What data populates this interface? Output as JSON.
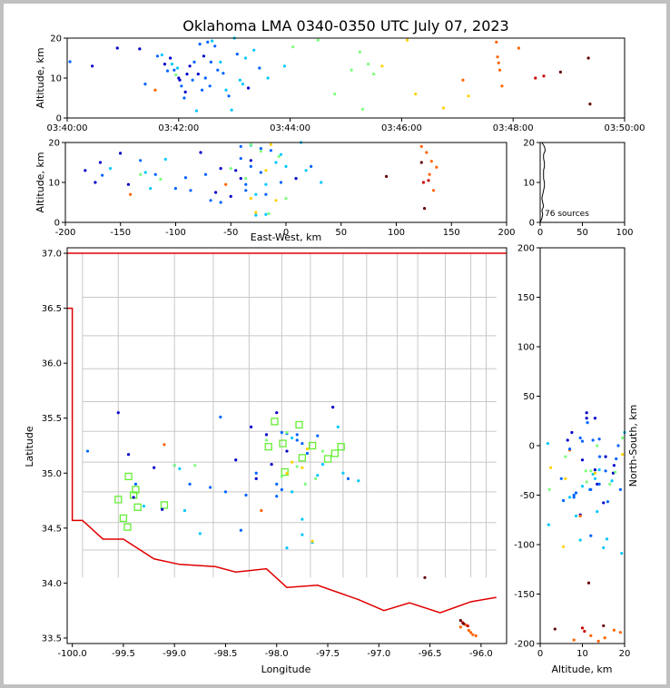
{
  "chart_data": {
    "type": "scatter",
    "title": "Oklahoma LMA 0340-0350 UTC July 07, 2023",
    "source_count_label": "76 sources",
    "colormap": [
      "#0000c8",
      "#0064ff",
      "#00c8ff",
      "#7cff7c",
      "#ffd200",
      "#ff6400",
      "#c80000",
      "#640000"
    ],
    "panels": {
      "time_alt": {
        "ylabel": "Altitude, km",
        "ylim": [
          0,
          20
        ],
        "yticks": [
          "0",
          "10",
          "20"
        ],
        "xticks": [
          "03:40:00",
          "03:42:00",
          "03:44:00",
          "03:46:00",
          "03:48:00",
          "03:50:00"
        ],
        "xlim_minutes": [
          0,
          10
        ]
      },
      "ew_alt": {
        "xlabel": "East-West, km",
        "ylabel": "Altitude, km",
        "xlim": [
          -200,
          200
        ],
        "ylim": [
          0,
          20
        ],
        "xticks": [
          "-200",
          "-150",
          "-100",
          "-50",
          "0",
          "50",
          "100",
          "150",
          "200"
        ],
        "yticks": [
          "0",
          "10",
          "20"
        ]
      },
      "histogram": {
        "xlim": [
          0,
          100
        ],
        "ylim": [
          0,
          20
        ],
        "xticks": [
          "0",
          "50",
          "100"
        ],
        "yticks": [
          "0",
          "10",
          "20"
        ]
      },
      "plan": {
        "xlabel": "Longitude",
        "ylabel": "Latitude",
        "xlim": [
          -100.05,
          -95.75
        ],
        "ylim": [
          33.45,
          37.05
        ],
        "xticks": [
          "-100.0",
          "-99.5",
          "-99.0",
          "-98.5",
          "-98.0",
          "-97.5",
          "-97.0",
          "-96.5",
          "-96.0"
        ],
        "yticks": [
          "33.5",
          "34.0",
          "34.5",
          "35.0",
          "35.5",
          "36.0",
          "36.5",
          "37.0"
        ]
      },
      "ns_alt": {
        "xlabel": "Altitude, km",
        "ylabel": "North-South, km",
        "xlim": [
          0,
          20
        ],
        "ylim": [
          -200,
          200
        ],
        "xticks": [
          "0",
          "10",
          "20"
        ],
        "yticks": [
          "-200",
          "-150",
          "-100",
          "-50",
          "0",
          "50",
          "100",
          "150",
          "200"
        ]
      }
    },
    "stations": [
      {
        "lon": -99.45,
        "lat": 34.97
      },
      {
        "lon": -99.38,
        "lat": 34.85
      },
      {
        "lon": -99.4,
        "lat": 34.8
      },
      {
        "lon": -99.55,
        "lat": 34.76
      },
      {
        "lon": -99.36,
        "lat": 34.69
      },
      {
        "lon": -99.5,
        "lat": 34.59
      },
      {
        "lon": -99.46,
        "lat": 34.51
      },
      {
        "lon": -99.1,
        "lat": 34.71
      },
      {
        "lon": -98.02,
        "lat": 35.47
      },
      {
        "lon": -97.78,
        "lat": 35.44
      },
      {
        "lon": -98.08,
        "lat": 35.24
      },
      {
        "lon": -97.94,
        "lat": 35.27
      },
      {
        "lon": -97.65,
        "lat": 35.25
      },
      {
        "lon": -97.75,
        "lat": 35.14
      },
      {
        "lon": -97.92,
        "lat": 35.01
      },
      {
        "lon": -97.43,
        "lat": 35.18
      },
      {
        "lon": -97.37,
        "lat": 35.24
      },
      {
        "lon": -97.5,
        "lat": 35.13
      }
    ],
    "sources": [
      {
        "t": 0.05,
        "lon": -99.85,
        "lat": 35.2,
        "alt": 14.1,
        "c": 1
      },
      {
        "t": 0.45,
        "lon": -99.55,
        "lat": 35.55,
        "alt": 13.0,
        "c": 0
      },
      {
        "t": 1.3,
        "lon": -99.2,
        "lat": 35.05,
        "alt": 17.3,
        "c": 0
      },
      {
        "t": 1.58,
        "lon": -99.1,
        "lat": 35.26,
        "alt": 7.0,
        "c": 5
      },
      {
        "t": 1.62,
        "lon": -99.0,
        "lat": 35.07,
        "alt": 15.5,
        "c": 1
      },
      {
        "t": 1.7,
        "lon": -98.75,
        "lat": 34.45,
        "alt": 15.8,
        "c": 2
      },
      {
        "t": 1.8,
        "lon": -99.38,
        "lat": 34.9,
        "alt": 11.8,
        "c": 1
      },
      {
        "t": 1.85,
        "lon": -99.4,
        "lat": 34.78,
        "alt": 15.0,
        "c": 0
      },
      {
        "t": 1.88,
        "lon": -99.3,
        "lat": 34.7,
        "alt": 13.5,
        "c": 2
      },
      {
        "t": 1.92,
        "lon": -98.85,
        "lat": 34.9,
        "alt": 12.0,
        "c": 1
      },
      {
        "t": 1.95,
        "lon": -98.8,
        "lat": 35.07,
        "alt": 10.8,
        "c": 3
      },
      {
        "t": 2.0,
        "lon": -99.45,
        "lat": 35.17,
        "alt": 10.0,
        "c": 0
      },
      {
        "t": 2.02,
        "lon": -99.12,
        "lat": 34.67,
        "alt": 9.5,
        "c": 0
      },
      {
        "t": 2.05,
        "lon": -98.5,
        "lat": 34.83,
        "alt": 8.0,
        "c": 1
      },
      {
        "t": 2.1,
        "lon": -98.2,
        "lat": 35.0,
        "alt": 5.0,
        "c": 1
      },
      {
        "t": 2.15,
        "lon": -98.0,
        "lat": 35.55,
        "alt": 11.0,
        "c": 0
      },
      {
        "t": 2.2,
        "lon": -98.05,
        "lat": 35.08,
        "alt": 13.0,
        "c": 0
      },
      {
        "t": 2.25,
        "lon": -97.95,
        "lat": 35.37,
        "alt": 9.5,
        "c": 1
      },
      {
        "t": 2.28,
        "lon": -97.9,
        "lat": 35.36,
        "alt": 14.0,
        "c": 1
      },
      {
        "t": 2.32,
        "lon": -97.85,
        "lat": 35.32,
        "alt": 1.8,
        "c": 2
      },
      {
        "t": 2.38,
        "lon": -97.8,
        "lat": 35.3,
        "alt": 18.5,
        "c": 1
      },
      {
        "t": 2.42,
        "lon": -97.75,
        "lat": 35.27,
        "alt": 7.0,
        "c": 1
      },
      {
        "t": 2.48,
        "lon": -97.6,
        "lat": 35.34,
        "alt": 10.0,
        "c": 1
      },
      {
        "t": 2.52,
        "lon": -98.0,
        "lat": 34.9,
        "alt": 19.0,
        "c": 1
      },
      {
        "t": 2.56,
        "lon": -97.95,
        "lat": 34.85,
        "alt": 8.0,
        "c": 1
      },
      {
        "t": 2.6,
        "lon": -97.9,
        "lat": 34.32,
        "alt": 19.3,
        "c": 2
      },
      {
        "t": 2.7,
        "lon": -98.35,
        "lat": 34.48,
        "alt": 12.0,
        "c": 1
      },
      {
        "t": 2.8,
        "lon": -98.55,
        "lat": 35.51,
        "alt": 11.2,
        "c": 1
      },
      {
        "t": 2.85,
        "lon": -97.85,
        "lat": 34.83,
        "alt": 7.0,
        "c": 2
      },
      {
        "t": 2.95,
        "lon": -97.75,
        "lat": 34.58,
        "alt": 2.0,
        "c": 2
      },
      {
        "t": 3.0,
        "lon": -97.4,
        "lat": 35.42,
        "alt": 20.0,
        "c": 2
      },
      {
        "t": 3.05,
        "lon": -98.0,
        "lat": 34.79,
        "alt": 16.0,
        "c": 1
      },
      {
        "t": 3.1,
        "lon": -97.75,
        "lat": 34.44,
        "alt": 9.5,
        "c": 2
      },
      {
        "t": 3.2,
        "lon": -97.65,
        "lat": 34.37,
        "alt": 15.0,
        "c": 2
      },
      {
        "t": 3.35,
        "lon": -97.6,
        "lat": 34.98,
        "alt": 17.0,
        "c": 2
      },
      {
        "t": 3.6,
        "lon": -97.2,
        "lat": 34.93,
        "alt": 10.0,
        "c": 2
      },
      {
        "t": 3.9,
        "lon": -97.35,
        "lat": 35.0,
        "alt": 13.0,
        "c": 2
      },
      {
        "t": 4.05,
        "lon": -97.8,
        "lat": 35.06,
        "alt": 17.8,
        "c": 3
      },
      {
        "t": 4.5,
        "lon": -97.9,
        "lat": 35.37,
        "alt": 19.5,
        "c": 3
      },
      {
        "t": 4.8,
        "lon": -97.55,
        "lat": 35.2,
        "alt": 6.0,
        "c": 3
      },
      {
        "t": 5.1,
        "lon": -99.0,
        "lat": 35.07,
        "alt": 12.0,
        "c": 3
      },
      {
        "t": 5.25,
        "lon": -97.62,
        "lat": 34.95,
        "alt": 16.5,
        "c": 3
      },
      {
        "t": 5.3,
        "lon": -97.72,
        "lat": 34.9,
        "alt": 2.2,
        "c": 3
      },
      {
        "t": 5.4,
        "lon": -98.1,
        "lat": 35.3,
        "alt": 13.5,
        "c": 3
      },
      {
        "t": 5.5,
        "lon": -97.95,
        "lat": 34.97,
        "alt": 11.0,
        "c": 3
      },
      {
        "t": 6.1,
        "lon": -97.7,
        "lat": 35.22,
        "alt": 19.5,
        "c": 4
      },
      {
        "t": 6.25,
        "lon": -97.9,
        "lat": 35.0,
        "alt": 6.0,
        "c": 4
      },
      {
        "t": 6.75,
        "lon": -97.85,
        "lat": 35.1,
        "alt": 2.5,
        "c": 4
      },
      {
        "t": 7.1,
        "lon": -98.15,
        "lat": 34.66,
        "alt": 9.5,
        "c": 5
      },
      {
        "t": 7.2,
        "lon": -97.65,
        "lat": 34.38,
        "alt": 5.5,
        "c": 4
      },
      {
        "t": 7.7,
        "lon": -96.2,
        "lat": 33.6,
        "alt": 19.0,
        "c": 5
      },
      {
        "t": 7.72,
        "lon": -96.1,
        "lat": 33.55,
        "alt": 15.3,
        "c": 5
      },
      {
        "t": 7.74,
        "lon": -96.05,
        "lat": 33.52,
        "alt": 13.8,
        "c": 5
      },
      {
        "t": 7.76,
        "lon": -96.12,
        "lat": 33.57,
        "alt": 12.0,
        "c": 5
      },
      {
        "t": 7.8,
        "lon": -96.08,
        "lat": 33.53,
        "alt": 8.0,
        "c": 5
      },
      {
        "t": 8.1,
        "lon": -96.15,
        "lat": 33.62,
        "alt": 17.5,
        "c": 5
      },
      {
        "t": 8.4,
        "lon": -96.18,
        "lat": 33.64,
        "alt": 10.0,
        "c": 6
      },
      {
        "t": 8.55,
        "lon": -96.13,
        "lat": 33.61,
        "alt": 10.5,
        "c": 6
      },
      {
        "t": 8.85,
        "lon": -96.55,
        "lat": 34.05,
        "alt": 11.5,
        "c": 7
      },
      {
        "t": 9.35,
        "lon": -96.2,
        "lat": 33.66,
        "alt": 15.0,
        "c": 7
      },
      {
        "t": 9.38,
        "lon": -96.17,
        "lat": 33.63,
        "alt": 3.5,
        "c": 7
      },
      {
        "t": 2.9,
        "lon": -98.3,
        "lat": 34.8,
        "alt": 5.5,
        "c": 1
      },
      {
        "t": 3.25,
        "lon": -98.25,
        "lat": 35.42,
        "alt": 7.5,
        "c": 0
      },
      {
        "t": 3.45,
        "lon": -97.8,
        "lat": 35.35,
        "alt": 12.5,
        "c": 1
      },
      {
        "t": 1.98,
        "lon": -98.95,
        "lat": 35.04,
        "alt": 12.5,
        "c": 2
      },
      {
        "t": 2.12,
        "lon": -98.1,
        "lat": 35.35,
        "alt": 6.5,
        "c": 0
      },
      {
        "t": 2.65,
        "lon": -97.7,
        "lat": 35.18,
        "alt": 18.0,
        "c": 1
      },
      {
        "t": 2.75,
        "lon": -97.55,
        "lat": 35.08,
        "alt": 14.0,
        "c": 2
      },
      {
        "t": 1.75,
        "lon": -98.2,
        "lat": 34.95,
        "alt": 13.5,
        "c": 0
      },
      {
        "t": 2.45,
        "lon": -97.9,
        "lat": 35.2,
        "alt": 15.5,
        "c": 0
      },
      {
        "t": 0.9,
        "lon": -98.4,
        "lat": 35.12,
        "alt": 17.5,
        "c": 0
      },
      {
        "t": 1.4,
        "lon": -98.65,
        "lat": 34.87,
        "alt": 8.5,
        "c": 1
      },
      {
        "t": 2.35,
        "lon": -97.45,
        "lat": 35.6,
        "alt": 11.0,
        "c": 0
      },
      {
        "t": 2.58,
        "lon": -97.3,
        "lat": 34.95,
        "alt": 14.0,
        "c": 1
      },
      {
        "t": 3.15,
        "lon": -98.9,
        "lat": 34.66,
        "alt": 8.5,
        "c": 2
      },
      {
        "t": 5.65,
        "lon": -97.75,
        "lat": 35.05,
        "alt": 13.0,
        "c": 4
      }
    ],
    "histogram_counts": [
      0,
      2,
      3,
      2,
      4,
      3,
      2,
      3,
      4,
      5,
      5,
      4,
      4,
      4,
      5,
      5,
      4,
      4,
      6,
      5,
      2
    ]
  }
}
